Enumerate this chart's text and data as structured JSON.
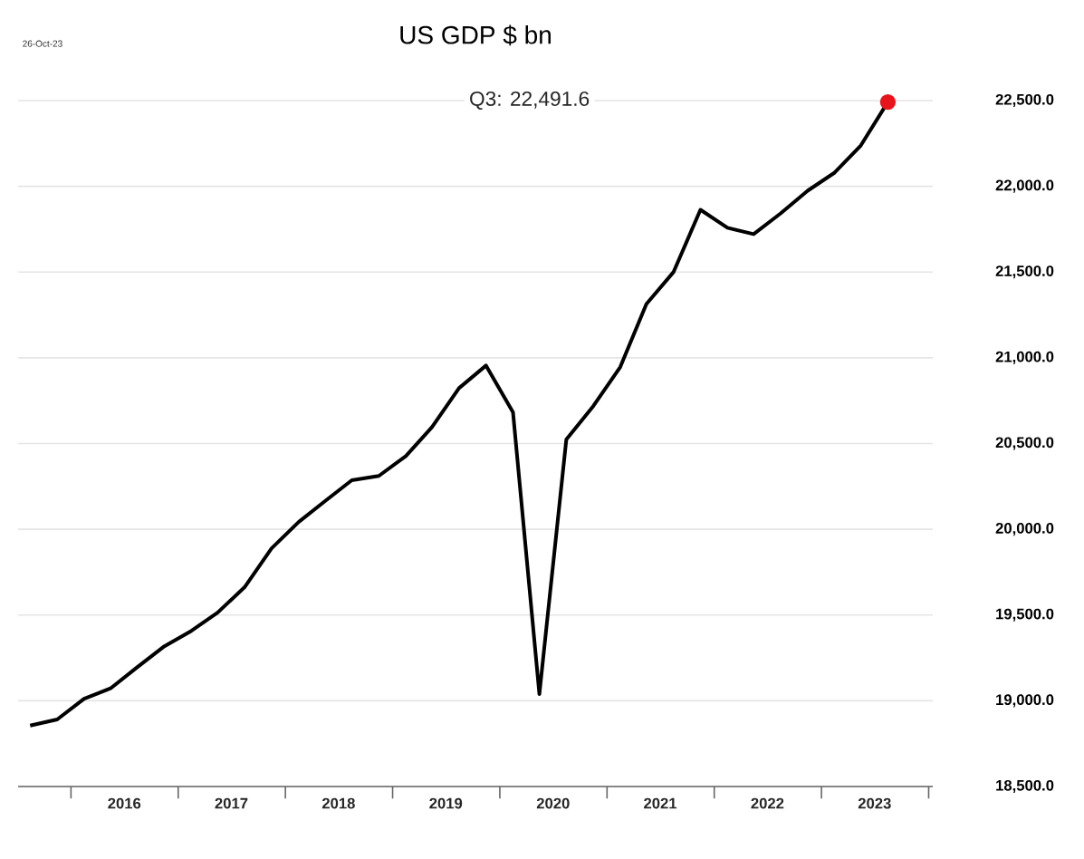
{
  "chart_data": {
    "type": "line",
    "title": "US GDP $ bn",
    "annotations": [
      "26-Oct-23",
      "Q3:   22,491.6"
    ],
    "xlim": [
      "2015-07-05",
      "2024-01-15"
    ],
    "xticks": [
      {
        "value": "2016-01-01",
        "label": null
      },
      {
        "value": "2016-07-01",
        "label": "2016"
      },
      {
        "value": "2017-01-01",
        "label": null
      },
      {
        "value": "2017-07-01",
        "label": "2017"
      },
      {
        "value": "2018-01-01",
        "label": null
      },
      {
        "value": "2018-07-01",
        "label": "2018"
      },
      {
        "value": "2019-01-01",
        "label": null
      },
      {
        "value": "2019-07-01",
        "label": "2019"
      },
      {
        "value": "2020-01-01",
        "label": null
      },
      {
        "value": "2020-07-01",
        "label": "2020"
      },
      {
        "value": "2021-01-01",
        "label": null
      },
      {
        "value": "2021-07-01",
        "label": "2021"
      },
      {
        "value": "2022-01-01",
        "label": null
      },
      {
        "value": "2022-07-01",
        "label": "2022"
      },
      {
        "value": "2023-01-01",
        "label": null
      },
      {
        "value": "2023-07-01",
        "label": "2023"
      },
      {
        "value": "2024-01-01",
        "label": null
      }
    ],
    "ylim": [
      18500,
      22500
    ],
    "yticks": [
      {
        "value": 18500,
        "label": "18,500.0"
      },
      {
        "value": 19000,
        "label": "19,000.0"
      },
      {
        "value": 19500,
        "label": "19,500.0"
      },
      {
        "value": 20000,
        "label": "20,000.0"
      },
      {
        "value": 20500,
        "label": "20,500.0"
      },
      {
        "value": 21000,
        "label": "21,000.0"
      },
      {
        "value": 21500,
        "label": "21,500.0"
      },
      {
        "value": 22000,
        "label": "22,000.0"
      },
      {
        "value": 22500,
        "label": "22,500.0"
      }
    ],
    "grid": "y",
    "series": [
      {
        "type": "line",
        "color": "#000000",
        "marker": "none",
        "line_style": "solid",
        "x": [
          "2015-08-15",
          "2015-11-15",
          "2016-02-15",
          "2016-05-15",
          "2016-08-15",
          "2016-11-15",
          "2017-02-15",
          "2017-05-15",
          "2017-08-15",
          "2017-11-15",
          "2018-02-15",
          "2018-05-15",
          "2018-08-15",
          "2018-11-15",
          "2019-02-15",
          "2019-05-15",
          "2019-08-15",
          "2019-11-15",
          "2020-02-15",
          "2020-05-15",
          "2020-08-15",
          "2020-11-15",
          "2021-02-15",
          "2021-05-15",
          "2021-08-15",
          "2021-11-15",
          "2022-02-15",
          "2022-05-15",
          "2022-08-15",
          "2022-11-15",
          "2023-02-15",
          "2023-05-15",
          "2023-08-15"
        ],
        "values": [
          18855,
          18891,
          19012,
          19072,
          19197,
          19318,
          19408,
          19514,
          19662,
          19889,
          20042,
          20163,
          20286,
          20311,
          20427,
          20596,
          20823,
          20955,
          20682,
          19039,
          20524,
          20718,
          20946,
          21314,
          21499,
          21863,
          21758,
          21721,
          21842,
          21974,
          22080,
          22238,
          22491.6
        ]
      },
      {
        "type": "scatter",
        "color": "#e8141c",
        "marker": "circle",
        "x": [
          "2023-08-15"
        ],
        "values": [
          22491.6
        ]
      }
    ]
  }
}
